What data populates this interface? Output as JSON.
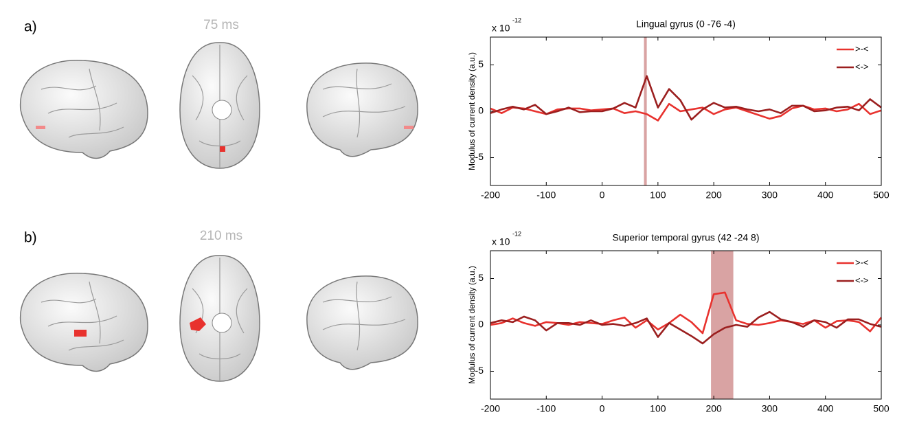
{
  "chart_data": [
    {
      "type": "line",
      "panel_label": "a)",
      "brain_time": "75 ms",
      "title": "Lingual gyrus (0 -76  -4)",
      "y_multiplier": "x 10",
      "y_multiplier_exp": "-12",
      "ylabel": "Modulus of current density (a.u.)",
      "x": [
        -200,
        -180,
        -160,
        -140,
        -120,
        -100,
        -80,
        -60,
        -40,
        -20,
        0,
        20,
        40,
        60,
        80,
        100,
        120,
        140,
        160,
        180,
        200,
        220,
        240,
        260,
        280,
        300,
        320,
        340,
        360,
        380,
        400,
        420,
        440,
        460,
        480,
        500
      ],
      "series": [
        {
          "name": ">-<",
          "color": "#e8322e",
          "values": [
            0.3,
            -0.2,
            0.4,
            0.3,
            0,
            -0.3,
            0.2,
            0.3,
            0.3,
            0.1,
            0.2,
            0.3,
            -0.2,
            0,
            -0.3,
            -1.0,
            0.8,
            0,
            0.2,
            0.4,
            -0.3,
            0.2,
            0.4,
            0,
            -0.4,
            -0.8,
            -0.5,
            0.3,
            0.6,
            0.2,
            0.3,
            0,
            0.2,
            0.8,
            -0.3,
            0.1
          ]
        },
        {
          "name": "<->",
          "color": "#9b1f1f",
          "values": [
            -0.2,
            0.2,
            0.5,
            0.2,
            0.7,
            -0.3,
            0,
            0.4,
            -0.1,
            0,
            0,
            0.3,
            0.9,
            0.4,
            3.8,
            0.4,
            2.4,
            1.2,
            -0.9,
            0.2,
            0.9,
            0.4,
            0.5,
            0.2,
            0,
            0.2,
            -0.2,
            0.6,
            0.6,
            0,
            0.1,
            0.4,
            0.5,
            0.1,
            1.3,
            0.4
          ]
        }
      ],
      "highlight": [
        75,
        80
      ],
      "highlight_color": "#d9a3a3",
      "xlim": [
        -200,
        500
      ],
      "xticks": [
        -200,
        -100,
        0,
        100,
        200,
        300,
        400,
        500
      ],
      "ylim": [
        -8,
        8
      ],
      "yticks": [
        -5,
        0,
        5
      ],
      "legend": "upper right"
    },
    {
      "type": "line",
      "panel_label": "b)",
      "brain_time": "210 ms",
      "title": "Superior temporal gyrus (42 -24   8)",
      "y_multiplier": "x 10",
      "y_multiplier_exp": "-12",
      "ylabel": "Modulus of current density (a.u.)",
      "x": [
        -200,
        -180,
        -160,
        -140,
        -120,
        -100,
        -80,
        -60,
        -40,
        -20,
        0,
        20,
        40,
        60,
        80,
        100,
        120,
        140,
        160,
        180,
        200,
        220,
        240,
        260,
        280,
        300,
        320,
        340,
        360,
        380,
        400,
        420,
        440,
        460,
        480,
        500
      ],
      "series": [
        {
          "name": ">-<",
          "color": "#e8322e",
          "values": [
            0,
            0.2,
            0.7,
            0.2,
            -0.1,
            0.3,
            0.2,
            0,
            0.3,
            0.2,
            0.1,
            0.5,
            0.8,
            -0.3,
            0.5,
            -0.5,
            0.2,
            1.1,
            0.3,
            -0.9,
            3.3,
            3.5,
            0.5,
            0.1,
            0,
            0.2,
            0.5,
            0.3,
            0.1,
            0.5,
            -0.3,
            0.4,
            0.5,
            0.3,
            -0.7,
            0.8
          ]
        },
        {
          "name": "<->",
          "color": "#9b1f1f",
          "values": [
            0.2,
            0.5,
            0.3,
            0.9,
            0.5,
            -0.6,
            0.2,
            0.2,
            0,
            0.5,
            0,
            0.1,
            -0.1,
            0.2,
            0.7,
            -1.3,
            0.2,
            -0.5,
            -1.2,
            -2.0,
            -1.0,
            -0.3,
            0,
            -0.2,
            0.8,
            1.4,
            0.6,
            0.3,
            -0.2,
            0.5,
            0.3,
            -0.3,
            0.6,
            0.6,
            0.1,
            -0.2
          ]
        }
      ],
      "highlight": [
        195,
        235
      ],
      "highlight_color": "#d9a3a3",
      "xlim": [
        -200,
        500
      ],
      "xticks": [
        -200,
        -100,
        0,
        100,
        200,
        300,
        400,
        500
      ],
      "ylim": [
        -8,
        8
      ],
      "yticks": [
        -5,
        0,
        5
      ],
      "legend": "upper right"
    }
  ]
}
